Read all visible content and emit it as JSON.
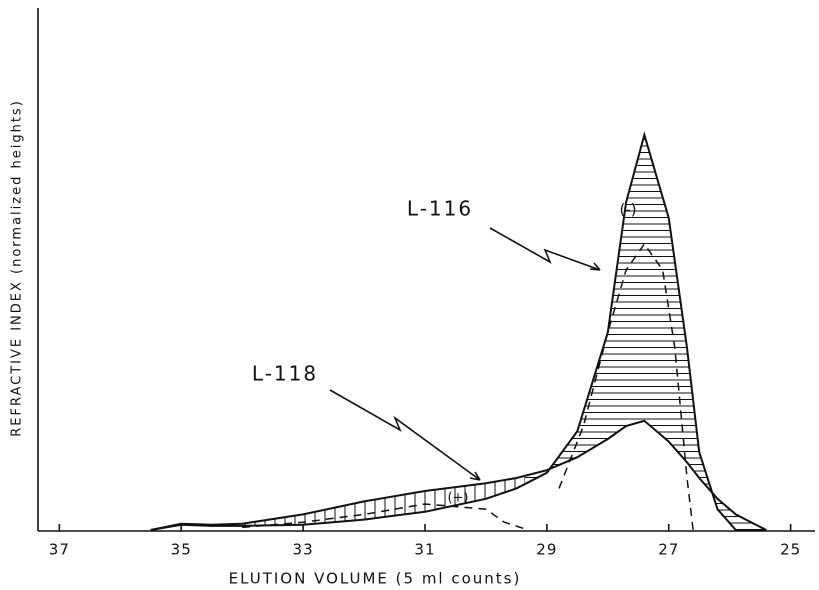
{
  "chart_data": {
    "type": "line",
    "x_label": "ELUTION VOLUME (5 ml counts)",
    "y_label": "REFRACTIVE INDEX (normalized heights)",
    "x": [
      35.5,
      35,
      34.5,
      34,
      33,
      32,
      31,
      30,
      29.5,
      29,
      28.5,
      28,
      27.7,
      27.4,
      27,
      26.7,
      26.5,
      26.2,
      25.9,
      25.4
    ],
    "series": [
      {
        "name": "L-116",
        "color": "#111111",
        "values": [
          0,
          1,
          0.8,
          0.8,
          1,
          2,
          3.5,
          6,
          8,
          11,
          19,
          38,
          63,
          76,
          60,
          35,
          15,
          4,
          0,
          0
        ]
      },
      {
        "name": "L-118",
        "color": "#111111",
        "values": [
          0,
          1.2,
          1,
          1.2,
          3,
          5.5,
          7.5,
          9,
          10,
          11.5,
          14,
          17.5,
          20,
          21,
          17,
          13,
          10,
          6,
          3,
          0
        ]
      },
      {
        "color": "#111111",
        "dashed": true,
        "x": [
          34,
          33,
          32,
          31,
          30,
          29.7,
          29.3,
          29.3,
          28.8,
          28.4,
          28,
          27.7,
          27.4,
          27.1,
          26.9,
          26.7,
          26.6
        ],
        "values": [
          0.5,
          1.5,
          3,
          5,
          4,
          1.5,
          0,
          null,
          8,
          20,
          38,
          50,
          55,
          50,
          35,
          10,
          0
        ]
      }
    ],
    "annotations": [
      "(-)",
      "(+)"
    ],
    "xlim": [
      37.35,
      24.6
    ],
    "xticks": [
      37,
      35,
      33,
      31,
      29,
      27,
      25
    ],
    "ylim": [
      0,
      100
    ]
  }
}
